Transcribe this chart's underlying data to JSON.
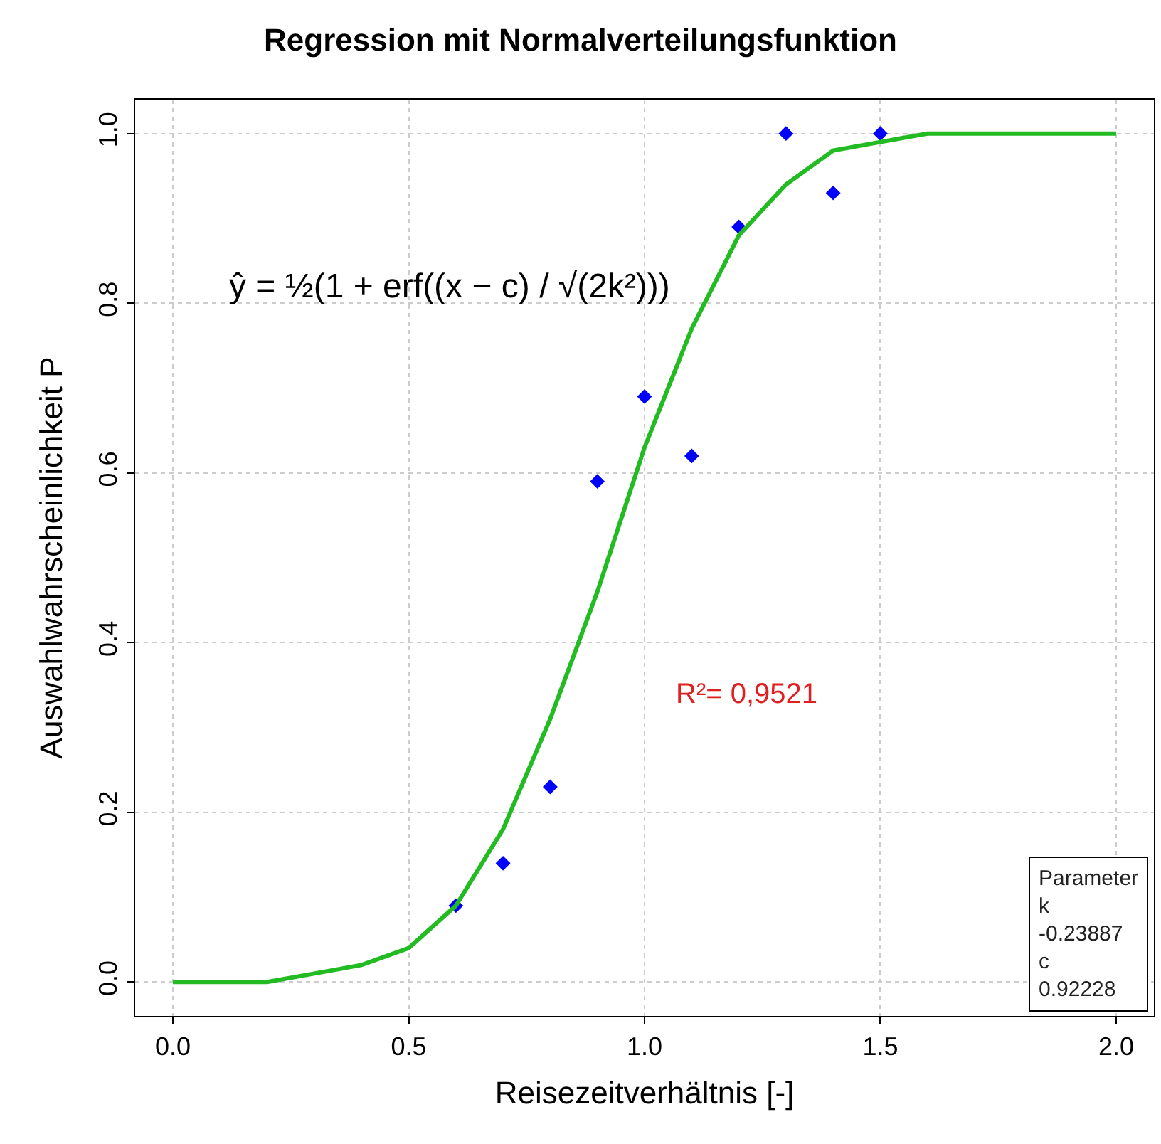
{
  "chart_data": {
    "type": "scatter",
    "title": "Regression mit Normalverteilungsfunktion",
    "xlabel": "Reisezeitverhältnis [-]",
    "ylabel": "Auswahlwahrscheinlichkeit P",
    "series": [
      {
        "color": "#0000ff",
        "marker": "diamond",
        "x": [
          0.6,
          0.7,
          0.8,
          0.9,
          1.0,
          1.1,
          1.2,
          1.3,
          1.4,
          1.5
        ],
        "values": [
          0.09,
          0.14,
          0.23,
          0.59,
          0.69,
          0.62,
          0.89,
          1.0,
          0.93,
          1.0
        ]
      },
      {
        "type": "line",
        "color": "#22bb22",
        "marker": "none",
        "line_style": "solid",
        "x": [
          0.0,
          0.1,
          0.2,
          0.3,
          0.4,
          0.5,
          0.6,
          0.7,
          0.8,
          0.9,
          1.0,
          1.1,
          1.2,
          1.3,
          1.4,
          1.5,
          1.6,
          1.7,
          1.8,
          1.9,
          2.0
        ],
        "values": [
          0.0,
          0.0,
          0.0,
          0.01,
          0.02,
          0.04,
          0.09,
          0.18,
          0.31,
          0.46,
          0.63,
          0.77,
          0.88,
          0.94,
          0.98,
          0.99,
          1.0,
          1.0,
          1.0,
          1.0,
          1.0
        ]
      }
    ],
    "xlim": [
      -0.08,
      2.08
    ],
    "ylim": [
      -0.04,
      1.04
    ],
    "xticks": [
      {
        "value": 0,
        "label": "0.0"
      },
      0.5,
      {
        "value": 1,
        "label": "1.0"
      },
      1.5,
      {
        "value": 2,
        "label": "2.0"
      }
    ],
    "yticks": [
      {
        "value": 0,
        "label": "0.0"
      },
      0.2,
      0.4,
      0.6,
      0.8,
      {
        "value": 1,
        "label": "1.0"
      }
    ],
    "grid": true,
    "legend": false,
    "annotations": [
      "ŷ = ½(1 + erf((x − c) / √(2k²)))",
      "R²= 0,9521",
      "Parameter\nk\n-0.23887\nc\n0.92228"
    ]
  }
}
